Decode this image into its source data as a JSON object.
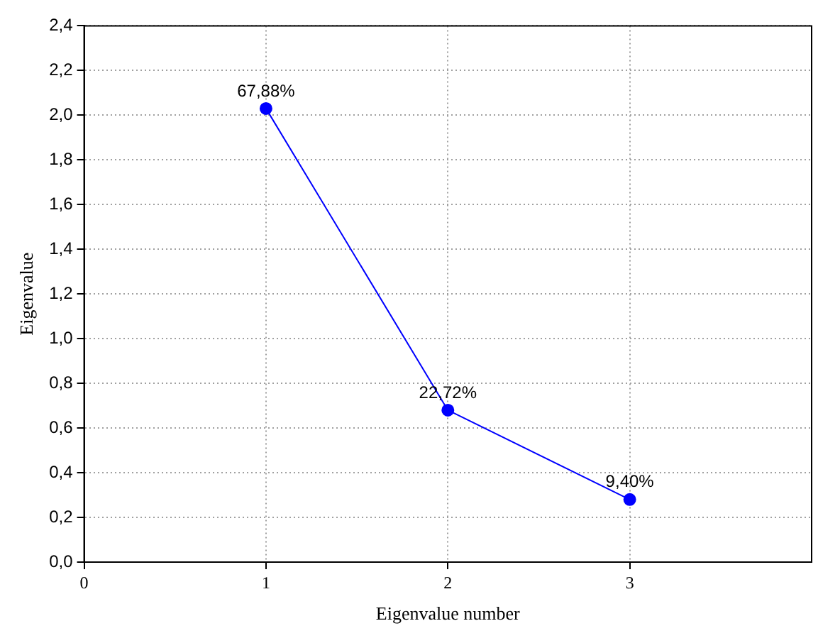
{
  "chart_data": {
    "type": "line",
    "xlabel": "Eigenvalue number",
    "ylabel": "Eigenvalue",
    "x": [
      1,
      2,
      3
    ],
    "series": [
      {
        "color": "#0000ff",
        "values": [
          2.03,
          0.68,
          0.28
        ]
      }
    ],
    "annotations": [
      {
        "text": "67,88%",
        "x": 1,
        "y": 2.03
      },
      {
        "text": "22,72%",
        "x": 2,
        "y": 0.68
      },
      {
        "text": "9,40%",
        "x": 3,
        "y": 0.28
      }
    ],
    "xlim": [
      0,
      4
    ],
    "xticks": [
      0,
      1,
      2,
      3
    ],
    "ylim": [
      0,
      2.4
    ],
    "yticks": [
      {
        "value": 0,
        "label": "0,0"
      },
      {
        "value": 0.2,
        "label": "0,2"
      },
      {
        "value": 0.4,
        "label": "0,4"
      },
      {
        "value": 0.6,
        "label": "0,6"
      },
      {
        "value": 0.8,
        "label": "0,8"
      },
      {
        "value": 1,
        "label": "1,0"
      },
      {
        "value": 1.2,
        "label": "1,2"
      },
      {
        "value": 1.4,
        "label": "1,4"
      },
      {
        "value": 1.6,
        "label": "1,6"
      },
      {
        "value": 1.8,
        "label": "1,8"
      },
      {
        "value": 2,
        "label": "2,0"
      },
      {
        "value": 2.2,
        "label": "2,2"
      },
      {
        "value": 2.4,
        "label": "2,4"
      }
    ],
    "grid": true,
    "marker": "circle",
    "line_style": "solid",
    "legend": false
  }
}
